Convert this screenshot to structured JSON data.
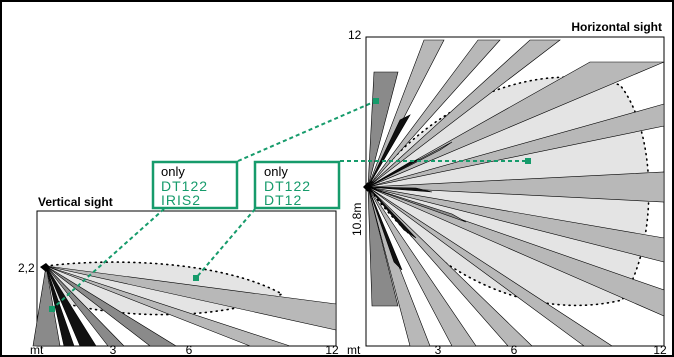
{
  "vertical": {
    "title": "Vertical sight",
    "height_label": "2,2",
    "x_unit": "mt",
    "x_ticks": [
      "3",
      "6",
      "12"
    ]
  },
  "horizontal": {
    "title": "Horizontal sight",
    "y_top_label": "12",
    "y_span_label": "10.8m",
    "x_unit": "mt",
    "x_ticks": [
      "3",
      "6",
      "12"
    ]
  },
  "notes": [
    {
      "only": "only",
      "models": [
        "DT122",
        "IRIS2"
      ]
    },
    {
      "only": "only",
      "models": [
        "DT122",
        "DT12"
      ]
    }
  ],
  "colors": {
    "accent_green": "#169b6b",
    "beam_light": "#b8b8b8",
    "beam_mid": "#8a8a8a",
    "beam_dark": "#111111",
    "coverage": "#e4e4e4"
  }
}
